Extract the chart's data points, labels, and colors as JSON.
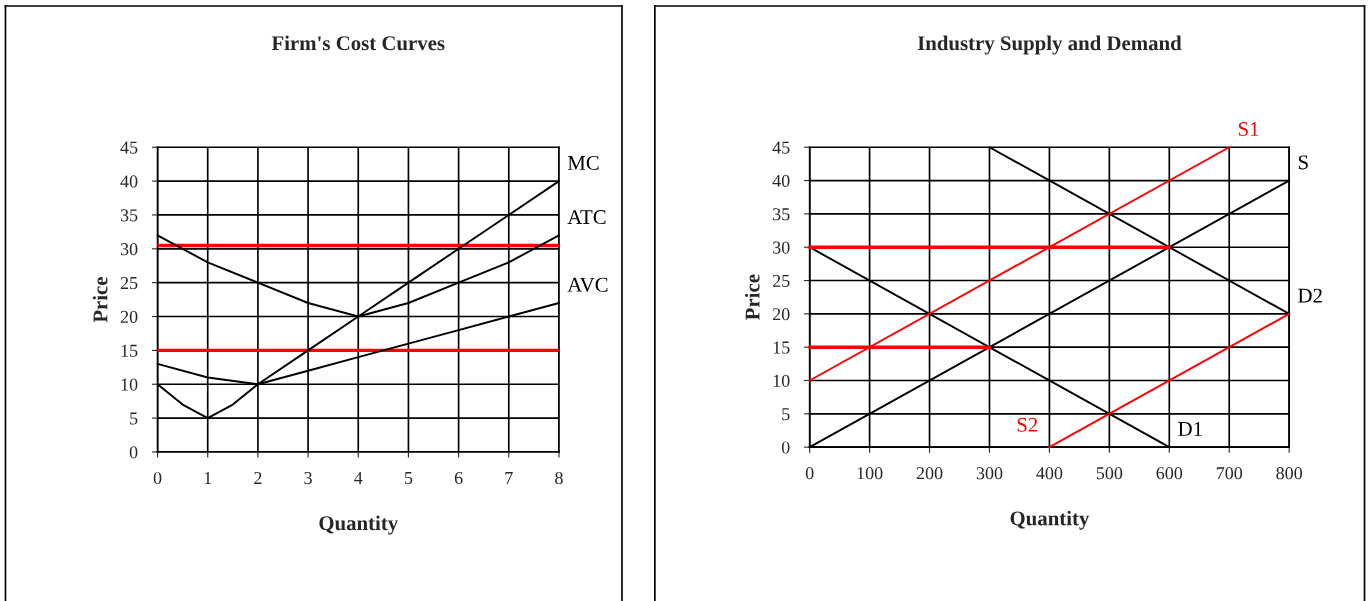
{
  "chart_data": [
    {
      "type": "line",
      "title": "Firm's Cost Curves",
      "xlabel": "Quantity",
      "ylabel": "Price",
      "xlim": [
        0,
        8
      ],
      "xticks": [
        0,
        1,
        2,
        3,
        4,
        5,
        6,
        7,
        8
      ],
      "ylim": [
        0,
        45
      ],
      "yticks": [
        0,
        5,
        10,
        15,
        20,
        25,
        30,
        35,
        40,
        45
      ],
      "grid": true,
      "legend": false,
      "series": [
        {
          "name": "MC",
          "color": "#000000",
          "x": [
            0,
            0.5,
            1,
            1.5,
            2,
            3,
            4,
            5,
            6,
            7,
            8
          ],
          "values": [
            10,
            7,
            5,
            7,
            10,
            15,
            20,
            25,
            30,
            35,
            40
          ]
        },
        {
          "name": "ATC",
          "color": "#000000",
          "x": [
            0,
            1,
            2,
            3,
            4,
            5,
            6,
            7,
            8
          ],
          "values": [
            32,
            28,
            25,
            22,
            20,
            22,
            25,
            28,
            32
          ]
        },
        {
          "name": "AVC",
          "color": "#000000",
          "x": [
            0,
            1,
            2,
            3,
            4,
            5,
            6,
            7,
            8
          ],
          "values": [
            13,
            11,
            10,
            12,
            14,
            16,
            18,
            20,
            22
          ]
        }
      ],
      "ref_lines": [
        {
          "axis": "y",
          "value": 30.5,
          "color": "#ff0000"
        },
        {
          "axis": "y",
          "value": 15,
          "color": "#ff0000"
        }
      ]
    },
    {
      "type": "line",
      "title": "Industry Supply and Demand",
      "xlabel": "Quantity",
      "ylabel": "Price",
      "xlim": [
        0,
        800
      ],
      "xticks": [
        0,
        100,
        200,
        300,
        400,
        500,
        600,
        700,
        800
      ],
      "ylim": [
        0,
        45
      ],
      "yticks": [
        0,
        5,
        10,
        15,
        20,
        25,
        30,
        35,
        40,
        45
      ],
      "grid": true,
      "legend": false,
      "series": [
        {
          "name": "S",
          "color": "#000000",
          "x": [
            0,
            800
          ],
          "values": [
            0,
            40
          ]
        },
        {
          "name": "D2",
          "color": "#000000",
          "x": [
            300,
            800
          ],
          "values": [
            45,
            20
          ]
        },
        {
          "name": "D1",
          "color": "#000000",
          "x": [
            0,
            600
          ],
          "values": [
            30,
            0
          ]
        },
        {
          "name": "S1",
          "color": "#ff0000",
          "x": [
            0,
            700
          ],
          "values": [
            10,
            45
          ]
        },
        {
          "name": "S2",
          "color": "#ff0000",
          "x": [
            400,
            800
          ],
          "values": [
            0,
            20
          ]
        },
        {
          "color": "#ff0000",
          "x": [
            0,
            600
          ],
          "values": [
            30,
            30
          ]
        },
        {
          "color": "#ff0000",
          "x": [
            0,
            300
          ],
          "values": [
            15,
            15
          ]
        }
      ]
    }
  ]
}
